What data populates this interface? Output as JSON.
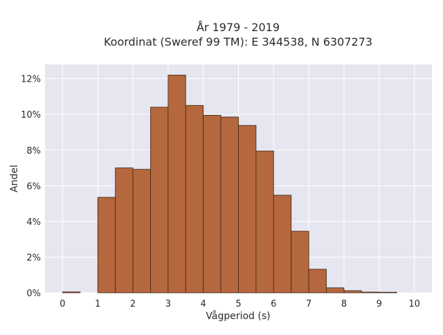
{
  "chart_data": {
    "type": "bar",
    "title": "År 1979 - 2019",
    "subtitle": "Koordinat (Sweref 99 TM): E 344538, N 6307273",
    "xlabel": "Vågperiod (s)",
    "ylabel": "Andel",
    "xlim": [
      -0.5,
      10.5
    ],
    "ylim": [
      0,
      12.8
    ],
    "x_ticks": [
      "0",
      "1",
      "2",
      "3",
      "4",
      "5",
      "6",
      "7",
      "8",
      "9",
      "10"
    ],
    "y_ticks": [
      "0%",
      "2%",
      "4%",
      "6%",
      "8%",
      "10%",
      "12%"
    ],
    "y_tick_values": [
      0,
      2,
      4,
      6,
      8,
      10,
      12
    ],
    "bin_width": 0.5,
    "bins": [
      {
        "start": 0.0,
        "value": 0.05
      },
      {
        "start": 0.5,
        "value": 0.0
      },
      {
        "start": 1.0,
        "value": 5.35
      },
      {
        "start": 1.5,
        "value": 7.0
      },
      {
        "start": 2.0,
        "value": 6.92
      },
      {
        "start": 2.5,
        "value": 10.4
      },
      {
        "start": 3.0,
        "value": 12.2
      },
      {
        "start": 3.5,
        "value": 10.5
      },
      {
        "start": 4.0,
        "value": 9.95
      },
      {
        "start": 4.5,
        "value": 9.85
      },
      {
        "start": 5.0,
        "value": 9.38
      },
      {
        "start": 5.5,
        "value": 7.95
      },
      {
        "start": 6.0,
        "value": 5.47
      },
      {
        "start": 6.5,
        "value": 3.45
      },
      {
        "start": 7.0,
        "value": 1.32
      },
      {
        "start": 7.5,
        "value": 0.28
      },
      {
        "start": 8.0,
        "value": 0.12
      },
      {
        "start": 8.5,
        "value": 0.04
      },
      {
        "start": 9.0,
        "value": 0.03
      },
      {
        "start": 9.5,
        "value": 0.0
      }
    ],
    "grid": true,
    "colors": {
      "bar_fill": "#b5673e",
      "bar_stroke": "#3d2414",
      "plot_bg": "#e5e6f0",
      "grid": "#ffffff"
    }
  }
}
